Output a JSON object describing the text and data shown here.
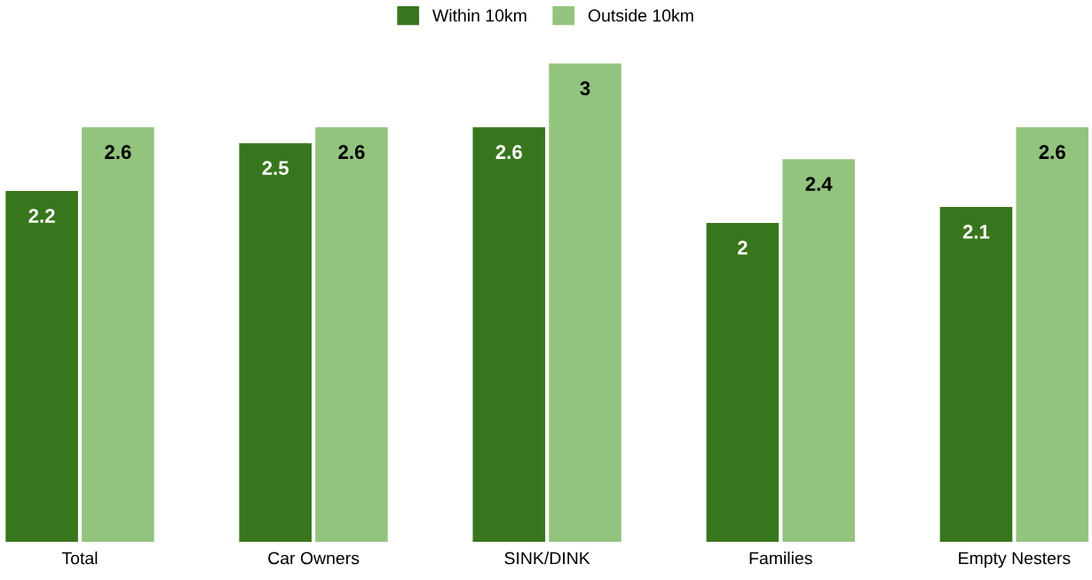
{
  "chart_data": {
    "type": "bar",
    "categories": [
      "Total",
      "Car Owners",
      "SINK/DINK",
      "Families",
      "Empty Nesters"
    ],
    "series": [
      {
        "name": "Within 10km",
        "color": "#38761d",
        "values": [
          2.2,
          2.5,
          2.6,
          2,
          2.1
        ]
      },
      {
        "name": "Outside 10km",
        "color": "#93c47d",
        "values": [
          2.6,
          2.6,
          3,
          2.4,
          2.6
        ]
      }
    ],
    "data_labels": true,
    "legend": "top",
    "grid": false
  }
}
